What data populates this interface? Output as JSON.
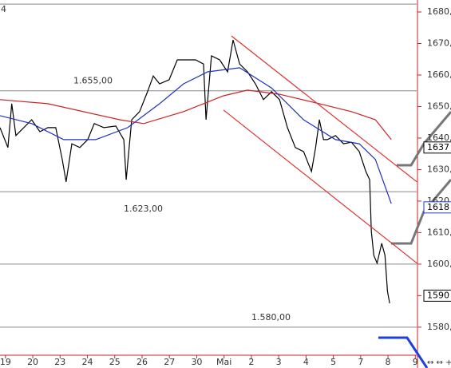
{
  "chart_data": {
    "type": "line",
    "corner_label": "4",
    "xlim": [
      -0.2,
      15.05
    ],
    "xticks": [
      {
        "value": 0,
        "label": "19"
      },
      {
        "value": 1,
        "label": "20"
      },
      {
        "value": 2,
        "label": "23"
      },
      {
        "value": 3,
        "label": "24"
      },
      {
        "value": 4,
        "label": "25"
      },
      {
        "value": 5,
        "label": "26"
      },
      {
        "value": 6,
        "label": "27"
      },
      {
        "value": 7,
        "label": "30"
      },
      {
        "value": 8,
        "label": "Mai"
      },
      {
        "value": 9,
        "label": "2"
      },
      {
        "value": 10,
        "label": "3"
      },
      {
        "value": 11,
        "label": "4"
      },
      {
        "value": 12,
        "label": "5"
      },
      {
        "value": 13,
        "label": "7"
      },
      {
        "value": 14,
        "label": "8"
      },
      {
        "value": 15,
        "label": "9"
      }
    ],
    "ylim": [
      1571.1,
      1683.8
    ],
    "yticks": [
      {
        "value": 1580,
        "label": "1580,00"
      },
      {
        "value": 1590,
        "label": "1590,00"
      },
      {
        "value": 1600,
        "label": "1600,00"
      },
      {
        "value": 1610,
        "label": "1610,00"
      },
      {
        "value": 1620,
        "label": "1620,00"
      },
      {
        "value": 1630,
        "label": "1630,00"
      },
      {
        "value": 1640,
        "label": "1640,00"
      },
      {
        "value": 1650,
        "label": "1650,00"
      },
      {
        "value": 1660,
        "label": "1660,00"
      },
      {
        "value": 1670,
        "label": "1670,00"
      },
      {
        "value": 1680,
        "label": "1680,00"
      }
    ],
    "levels": [
      1682.5,
      1655,
      1623,
      1600,
      1580
    ],
    "level_labels": [
      {
        "value": 1655,
        "label": "1.655,00"
      },
      {
        "value": 1623,
        "label": "1.623,00"
      },
      {
        "value": 1580,
        "label": "1.580,00"
      }
    ],
    "price_tags": [
      {
        "value": 1637,
        "color": "#000000"
      },
      {
        "value": 1618,
        "color": "#1f3fbf"
      },
      {
        "value": 1590,
        "color": "#000000"
      }
    ],
    "series": [
      {
        "color": "#000000",
        "x": [
          -0.2,
          0.09,
          0.23,
          0.38,
          0.96,
          1.26,
          1.55,
          1.84,
          2.08,
          2.22,
          2.43,
          2.72,
          3.01,
          3.25,
          3.6,
          4.04,
          4.33,
          4.42,
          4.62,
          4.91,
          5.2,
          5.41,
          5.64,
          5.99,
          6.29,
          6.52,
          6.96,
          7.25,
          7.34,
          7.54,
          7.84,
          8.13,
          8.33,
          8.57,
          8.86,
          9.15,
          9.44,
          9.74,
          10.03,
          10.32,
          10.61,
          10.91,
          11.2,
          11.35,
          11.49,
          11.64,
          11.78,
          12.08,
          12.37,
          12.66,
          12.95,
          13.19,
          13.33,
          13.39,
          13.48,
          13.6,
          13.77,
          13.89,
          13.98,
          14.06
        ],
        "values": [
          1643.3,
          1637.0,
          1650.9,
          1640.8,
          1645.8,
          1642.0,
          1643.3,
          1643.3,
          1633.2,
          1626.1,
          1638.2,
          1637.0,
          1639.5,
          1644.6,
          1643.3,
          1643.8,
          1639.5,
          1626.8,
          1645.8,
          1648.4,
          1654.7,
          1659.7,
          1657.2,
          1658.5,
          1664.8,
          1664.8,
          1664.8,
          1663.5,
          1645.8,
          1666.1,
          1664.8,
          1661.0,
          1671.1,
          1663.5,
          1661.0,
          1657.2,
          1652.2,
          1654.7,
          1652.2,
          1643.3,
          1637.0,
          1635.7,
          1629.4,
          1637.0,
          1645.8,
          1639.5,
          1639.5,
          1640.8,
          1638.2,
          1638.7,
          1635.7,
          1629.4,
          1626.8,
          1610.4,
          1602.8,
          1600.3,
          1606.6,
          1602.8,
          1591.4,
          1587.6
        ]
      },
      {
        "color": "#cc2222",
        "x": [
          -0.2,
          1.55,
          4.18,
          5.06,
          6.52,
          7.98,
          8.86,
          10.03,
          11.49,
          12.66,
          13.54,
          14.12
        ],
        "values": [
          1652.2,
          1650.9,
          1645.8,
          1644.6,
          1648.4,
          1653.4,
          1655.2,
          1653.9,
          1650.9,
          1648.4,
          1645.8,
          1639.5
        ]
      },
      {
        "color": "#1f2fbf",
        "x": [
          -0.2,
          0.96,
          2.13,
          3.3,
          4.47,
          5.64,
          6.52,
          7.4,
          8.57,
          9.74,
          10.91,
          12.08,
          12.95,
          13.54,
          14.12
        ],
        "values": [
          1647.1,
          1644.6,
          1639.5,
          1639.5,
          1643.3,
          1650.9,
          1657.2,
          1661.0,
          1662.3,
          1655.9,
          1645.8,
          1639.5,
          1638.2,
          1633.2,
          1619.2
        ]
      },
      {
        "color": "#dd3333",
        "x": [
          8.27,
          15.06
        ],
        "values": [
          1672.4,
          1626.1
        ]
      },
      {
        "color": "#dd3333",
        "x": [
          7.98,
          15.06
        ],
        "values": [
          1648.9,
          1600.3
        ]
      }
    ]
  }
}
